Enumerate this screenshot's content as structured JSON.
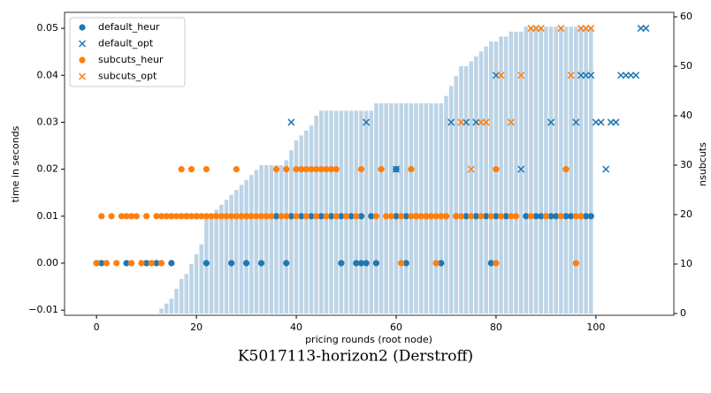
{
  "chart_data": {
    "type": "scatter",
    "caption": "K5017113-horizon2 (Derstroff)",
    "x_label": "pricing rounds (root node)",
    "y_label": "time in seconds",
    "y2_label": "nsubcuts",
    "xlim": [
      -6.4,
      115.6
    ],
    "xticks": [
      0,
      20,
      40,
      60,
      80,
      100
    ],
    "ylim": [
      -0.0111,
      0.0534
    ],
    "yticks": [
      {
        "value": -0.01,
        "label": "−0.01"
      },
      {
        "value": 0,
        "label": "0.00"
      },
      0.01,
      0.02,
      0.03,
      0.04,
      0.05
    ],
    "y2lim": [
      -0.36,
      60.9
    ],
    "y2ticks": [
      0,
      10,
      20,
      30,
      40,
      50,
      60
    ],
    "legend": "upper left",
    "bars": {
      "type": "bar",
      "axis": "y2",
      "color": "#bcd4e6",
      "x": [
        13,
        14,
        15,
        16,
        17,
        18,
        19,
        20,
        21,
        22,
        23,
        24,
        25,
        26,
        27,
        28,
        29,
        30,
        31,
        32,
        33,
        34,
        35,
        36,
        37,
        38,
        39,
        40,
        41,
        42,
        43,
        44,
        45,
        46,
        47,
        48,
        49,
        50,
        51,
        52,
        53,
        54,
        55,
        56,
        57,
        58,
        59,
        60,
        61,
        62,
        63,
        64,
        65,
        66,
        67,
        68,
        69,
        70,
        71,
        72,
        73,
        74,
        75,
        76,
        77,
        78,
        79,
        80,
        81,
        82,
        83,
        84,
        85,
        86,
        87,
        88,
        89,
        90,
        91,
        92,
        93,
        94,
        95,
        96,
        97,
        98,
        99
      ],
      "values": [
        1,
        2,
        3,
        5,
        7,
        8,
        10,
        12,
        14,
        20,
        20,
        21,
        22,
        23,
        24,
        25,
        26,
        27,
        28,
        29,
        30,
        30,
        30,
        30,
        30,
        31,
        33,
        35,
        36,
        37,
        38,
        40,
        41,
        41,
        41,
        41,
        41,
        41,
        41,
        41,
        41,
        41,
        41,
        42.5,
        42.5,
        42.5,
        42.5,
        42.5,
        42.5,
        42.5,
        42.5,
        42.5,
        42.5,
        42.5,
        42.5,
        42.5,
        42.5,
        44,
        46,
        48,
        50,
        50,
        51,
        52,
        53,
        54,
        55,
        55,
        56,
        56,
        57,
        57,
        57,
        58,
        58,
        58,
        58,
        58,
        58,
        58,
        58,
        58,
        58,
        58,
        58,
        58,
        58
      ]
    },
    "series": [
      {
        "name": "default_heur",
        "color": "#1f77b4",
        "marker": "o",
        "x": [
          0,
          1,
          6,
          10,
          12,
          15,
          22,
          27,
          30,
          33,
          38,
          49,
          52,
          53,
          54,
          56,
          62,
          69,
          79,
          18,
          20,
          30,
          36,
          39,
          41,
          43,
          45,
          47,
          49,
          51,
          53,
          55,
          60,
          62,
          64,
          66,
          70,
          72,
          74,
          76,
          78,
          80,
          82,
          86,
          88,
          89,
          91,
          92,
          94,
          95,
          97,
          98,
          99,
          60
        ],
        "values": [
          0,
          0,
          0,
          0,
          0,
          0,
          0,
          0,
          0,
          0,
          0,
          0,
          0,
          0,
          0,
          0,
          0,
          0,
          0,
          0.01,
          0.01,
          0.01,
          0.01,
          0.01,
          0.01,
          0.01,
          0.01,
          0.01,
          0.01,
          0.01,
          0.01,
          0.01,
          0.01,
          0.01,
          0.01,
          0.01,
          0.01,
          0.01,
          0.01,
          0.01,
          0.01,
          0.01,
          0.01,
          0.01,
          0.01,
          0.01,
          0.01,
          0.01,
          0.01,
          0.01,
          0.01,
          0.01,
          0.01,
          0.02
        ]
      },
      {
        "name": "default_opt",
        "color": "#1f77b4",
        "marker": "x",
        "x": [
          60,
          85,
          102,
          39,
          54,
          71,
          74,
          76,
          91,
          96,
          100,
          101,
          103,
          104,
          80,
          97,
          98,
          99,
          105,
          106,
          107,
          108,
          109,
          110
        ],
        "values": [
          0.02,
          0.02,
          0.02,
          0.03,
          0.03,
          0.03,
          0.03,
          0.03,
          0.03,
          0.03,
          0.03,
          0.03,
          0.03,
          0.03,
          0.04,
          0.04,
          0.04,
          0.04,
          0.04,
          0.04,
          0.04,
          0.04,
          0.05,
          0.05
        ]
      },
      {
        "name": "subcuts_heur",
        "color": "#ff7f0e",
        "marker": "o",
        "x": [
          0,
          2,
          4,
          7,
          9,
          11,
          13,
          61,
          68,
          80,
          96,
          1,
          3,
          5,
          6,
          7,
          8,
          10,
          12,
          13,
          14,
          15,
          16,
          17,
          18,
          19,
          20,
          21,
          22,
          23,
          24,
          25,
          26,
          27,
          28,
          29,
          30,
          31,
          32,
          33,
          34,
          35,
          37,
          38,
          40,
          42,
          44,
          46,
          48,
          50,
          52,
          56,
          58,
          59,
          61,
          63,
          64,
          65,
          66,
          67,
          68,
          69,
          70,
          72,
          73,
          75,
          77,
          79,
          81,
          83,
          84,
          87,
          90,
          93,
          96,
          97,
          17,
          19,
          22,
          28,
          36,
          38,
          40,
          41,
          42,
          43,
          44,
          45,
          46,
          47,
          48,
          53,
          57,
          63,
          80,
          94
        ],
        "values": [
          0,
          0,
          0,
          0,
          0,
          0,
          0,
          0,
          0,
          0,
          0,
          0.01,
          0.01,
          0.01,
          0.01,
          0.01,
          0.01,
          0.01,
          0.01,
          0.01,
          0.01,
          0.01,
          0.01,
          0.01,
          0.01,
          0.01,
          0.01,
          0.01,
          0.01,
          0.01,
          0.01,
          0.01,
          0.01,
          0.01,
          0.01,
          0.01,
          0.01,
          0.01,
          0.01,
          0.01,
          0.01,
          0.01,
          0.01,
          0.01,
          0.01,
          0.01,
          0.01,
          0.01,
          0.01,
          0.01,
          0.01,
          0.01,
          0.01,
          0.01,
          0.01,
          0.01,
          0.01,
          0.01,
          0.01,
          0.01,
          0.01,
          0.01,
          0.01,
          0.01,
          0.01,
          0.01,
          0.01,
          0.01,
          0.01,
          0.01,
          0.01,
          0.01,
          0.01,
          0.01,
          0.01,
          0.01,
          0.02,
          0.02,
          0.02,
          0.02,
          0.02,
          0.02,
          0.02,
          0.02,
          0.02,
          0.02,
          0.02,
          0.02,
          0.02,
          0.02,
          0.02,
          0.02,
          0.02,
          0.02,
          0.02,
          0.02
        ]
      },
      {
        "name": "subcuts_opt",
        "color": "#ff7f0e",
        "marker": "x",
        "x": [
          75,
          73,
          77,
          78,
          83,
          81,
          85,
          95,
          87,
          88,
          89,
          93,
          97,
          98,
          99
        ],
        "values": [
          0.02,
          0.03,
          0.03,
          0.03,
          0.03,
          0.04,
          0.04,
          0.04,
          0.05,
          0.05,
          0.05,
          0.05,
          0.05,
          0.05,
          0.05
        ]
      }
    ]
  }
}
